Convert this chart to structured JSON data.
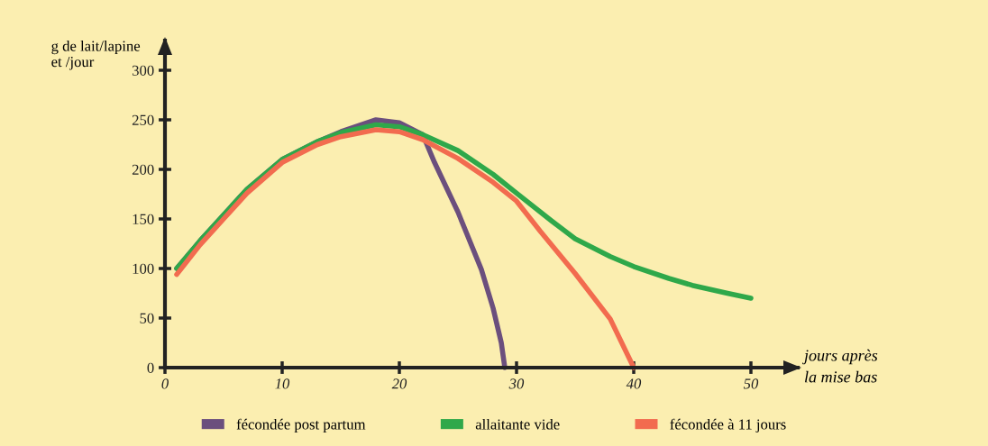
{
  "chart_data": {
    "type": "line",
    "xlabel": "jours après\nla mise bas",
    "ylabel": "g de lait/lapine\net /jour",
    "xlim": [
      0,
      54
    ],
    "ylim": [
      0,
      330
    ],
    "xticks": [
      0,
      10,
      20,
      30,
      40,
      50
    ],
    "yticks": [
      0,
      50,
      100,
      150,
      200,
      250,
      300
    ],
    "grid": false,
    "legend": "bottom",
    "marker": "none",
    "line_style": "solid",
    "series": [
      {
        "name": "fécondée post partum",
        "color": "#6b4f7d",
        "x": [
          1,
          3,
          5,
          7,
          10,
          13,
          15,
          18,
          20,
          22,
          23,
          25,
          27,
          28,
          28.7,
          29
        ],
        "values": [
          100,
          128,
          154,
          180,
          210,
          228,
          238,
          250,
          247,
          235,
          207,
          157,
          99,
          60,
          25,
          0
        ]
      },
      {
        "name": "allaitante vide",
        "color": "#2fa84a",
        "x": [
          1,
          3,
          5,
          7,
          10,
          13,
          15,
          18,
          20,
          22,
          25,
          28,
          30,
          33,
          35,
          38,
          40,
          43,
          45,
          48,
          50
        ],
        "values": [
          100,
          128,
          154,
          180,
          210,
          228,
          237,
          245,
          243,
          235,
          219,
          195,
          176,
          148,
          130,
          112,
          102,
          90,
          83,
          75,
          70
        ]
      },
      {
        "name": "fécondée à 11 jours",
        "color": "#f26b4f",
        "x": [
          1,
          3,
          5,
          7,
          10,
          13,
          15,
          18,
          20,
          22,
          25,
          28,
          30,
          32,
          35,
          38,
          40
        ],
        "values": [
          94,
          124,
          150,
          176,
          207,
          225,
          233,
          240,
          238,
          230,
          211,
          187,
          168,
          138,
          95,
          49,
          0
        ]
      }
    ]
  }
}
